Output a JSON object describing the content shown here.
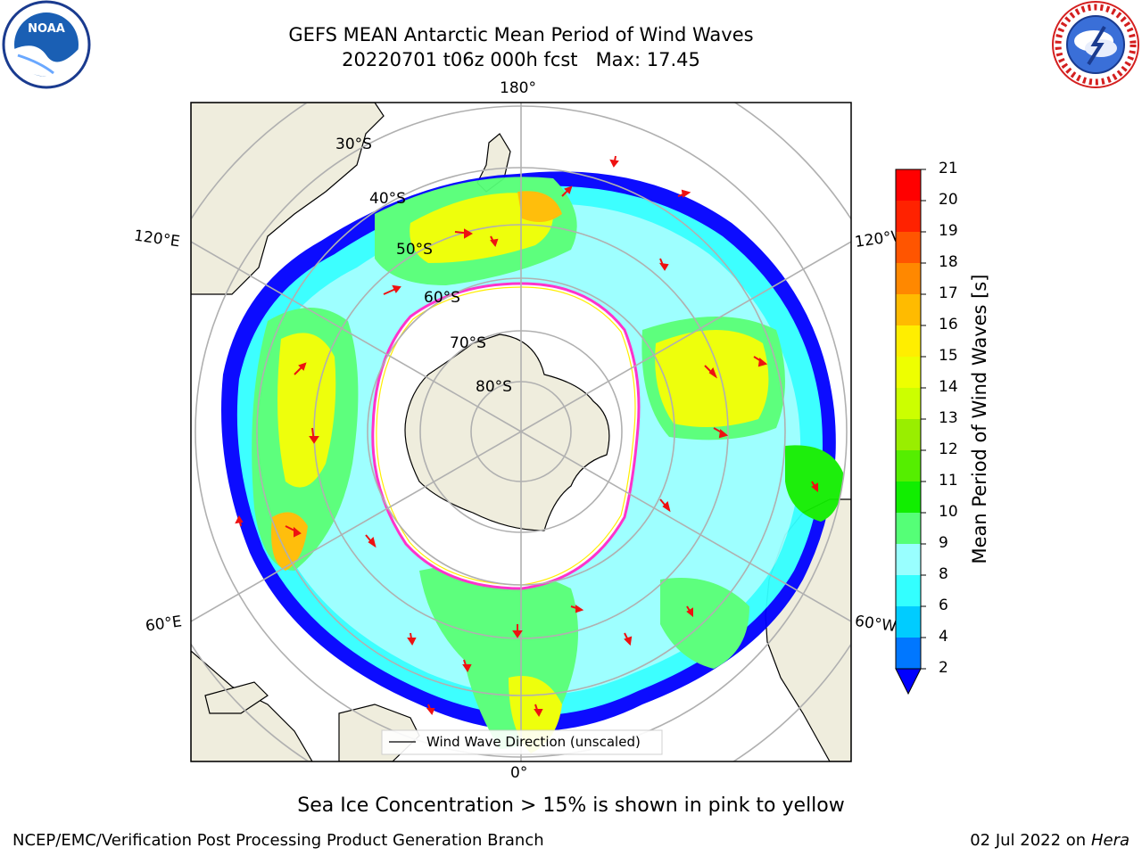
{
  "header": {
    "title_line1": "GEFS MEAN Antarctic Mean Period of Wind Waves",
    "title_line2": "20220701 t06z 000h fcst   Max: 17.45"
  },
  "logos": {
    "left": {
      "name": "noaa-logo",
      "text": "NOAA"
    },
    "right": {
      "name": "nws-logo",
      "text": "NATIONAL WEATHER SERVICE"
    }
  },
  "map": {
    "projection": "south polar stereographic",
    "longitude_labels": {
      "top": "180°",
      "bottom": "0°",
      "upper_left": "120°E",
      "lower_left": "60°E",
      "upper_right": "120°W",
      "lower_right": "60°W"
    },
    "latitude_labels": [
      "30°S",
      "40°S",
      "50°S",
      "60°S",
      "70°S",
      "80°S"
    ],
    "legend": "Wind Wave Direction (unscaled)",
    "colors": {
      "land": "#efeddd",
      "grid": "#b0b0b0",
      "ice_edge": "#ff33cc",
      "arrow": "#ee1111"
    }
  },
  "colorbar": {
    "label": "Mean Period of Wind Waves [s]",
    "ticks": [
      "2",
      "4",
      "6",
      "8",
      "9",
      "10",
      "11",
      "12",
      "13",
      "14",
      "15",
      "16",
      "17",
      "18",
      "19",
      "20",
      "21"
    ],
    "colors": [
      "#0000ff",
      "#0077ff",
      "#00ccff",
      "#33ffff",
      "#99ffff",
      "#55ff77",
      "#11ee00",
      "#55ee00",
      "#99ee00",
      "#ccff00",
      "#eeff00",
      "#ffee00",
      "#ffbb00",
      "#ff8800",
      "#ff5500",
      "#ff2200",
      "#ff0000"
    ]
  },
  "caption": "Sea Ice Concentration > 15% is shown in pink to yellow",
  "footer": {
    "left": "NCEP/EMC/Verification Post Processing Product Generation Branch",
    "right_date": "02 Jul 2022 on ",
    "right_host": "Hera"
  }
}
